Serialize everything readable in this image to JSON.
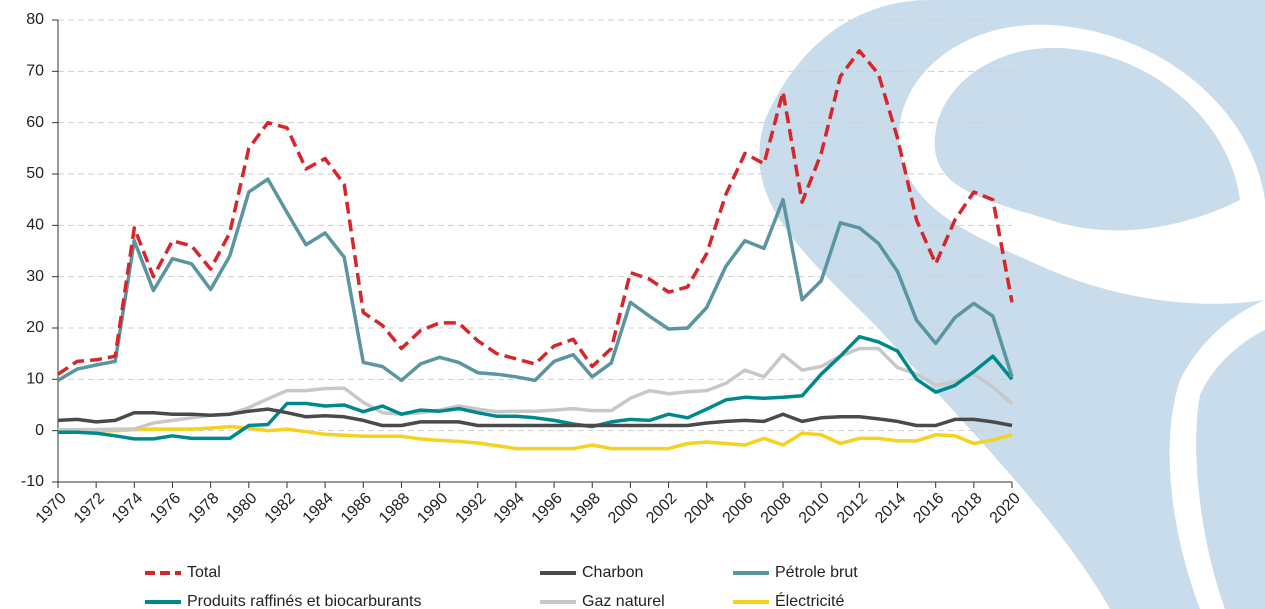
{
  "chart_data": {
    "type": "line",
    "x": [
      1970,
      1971,
      1972,
      1973,
      1974,
      1975,
      1976,
      1977,
      1978,
      1979,
      1980,
      1981,
      1982,
      1983,
      1984,
      1985,
      1986,
      1987,
      1988,
      1989,
      1990,
      1991,
      1992,
      1993,
      1994,
      1995,
      1996,
      1997,
      1998,
      1999,
      2000,
      2001,
      2002,
      2003,
      2004,
      2005,
      2006,
      2007,
      2008,
      2009,
      2010,
      2011,
      2012,
      2013,
      2014,
      2015,
      2016,
      2017,
      2018,
      2019,
      2020
    ],
    "xlim": [
      1970,
      2020
    ],
    "xticks": [
      1970,
      1972,
      1974,
      1976,
      1978,
      1980,
      1982,
      1984,
      1986,
      1988,
      1990,
      1992,
      1994,
      1996,
      1998,
      2000,
      2002,
      2004,
      2006,
      2008,
      2010,
      2012,
      2014,
      2016,
      2018,
      2020
    ],
    "ylim": [
      -10,
      80
    ],
    "yticks": [
      -10,
      0,
      10,
      20,
      30,
      40,
      50,
      60,
      70,
      80
    ],
    "grid": true,
    "series": [
      {
        "name": "Total",
        "color": "#d7262b",
        "style": "dashed",
        "values": [
          11,
          13.5,
          13.8,
          14.5,
          39.5,
          30,
          37,
          36,
          31.5,
          38.5,
          55,
          60,
          59,
          51,
          53,
          48,
          23,
          20.5,
          16,
          19.5,
          21,
          21,
          17.5,
          15,
          14,
          13,
          16.5,
          17.8,
          12.5,
          16,
          30.8,
          29.5,
          27,
          28,
          34.5,
          46,
          54,
          52,
          66,
          44.5,
          54,
          69,
          74,
          69.5,
          57,
          41,
          32.5,
          41,
          46.5,
          45,
          25
        ]
      },
      {
        "name": "Charbon",
        "color": "#4a4a4a",
        "style": "solid",
        "values": [
          2,
          2.2,
          1.7,
          2,
          3.5,
          3.5,
          3.2,
          3.2,
          3,
          3.2,
          3.8,
          4.2,
          3.5,
          2.7,
          2.9,
          2.7,
          2,
          1,
          1,
          1.7,
          1.7,
          1.7,
          1,
          1,
          1,
          1,
          1,
          1,
          1,
          1,
          1,
          1,
          1,
          1,
          1.5,
          1.8,
          2,
          1.8,
          3.2,
          1.8,
          2.5,
          2.7,
          2.7,
          2.3,
          1.8,
          1,
          1,
          2.2,
          2.2,
          1.7,
          1
        ]
      },
      {
        "name": "Pétrole brut",
        "color": "#5a95a1",
        "style": "solid",
        "values": [
          9.8,
          12,
          12.8,
          13.5,
          37,
          27.3,
          33.5,
          32.5,
          27.5,
          34,
          46.5,
          49,
          42.5,
          36.2,
          38.5,
          33.8,
          13.3,
          12.5,
          9.8,
          13,
          14.3,
          13.3,
          11.3,
          11,
          10.5,
          9.8,
          13.5,
          14.8,
          10.5,
          13.2,
          25,
          22.3,
          19.8,
          20,
          24,
          32,
          37,
          35.5,
          45,
          25.5,
          29.2,
          40.5,
          39.5,
          36.5,
          31,
          21.5,
          17,
          22,
          24.8,
          22.3,
          10.5
        ]
      },
      {
        "name": "Produits raffinés et biocarburants",
        "color": "#00898b",
        "style": "solid",
        "values": [
          -0.3,
          -0.3,
          -0.5,
          -1,
          -1.6,
          -1.6,
          -1,
          -1.5,
          -1.5,
          -1.5,
          1,
          1.2,
          5.3,
          5.3,
          4.8,
          5,
          3.7,
          4.8,
          3.2,
          4,
          3.8,
          4.3,
          3.5,
          2.8,
          2.8,
          2.5,
          2,
          1.3,
          0.8,
          1.7,
          2.2,
          2,
          3.2,
          2.5,
          4.2,
          6,
          6.5,
          6.3,
          6.5,
          6.8,
          11,
          14.5,
          18.3,
          17.3,
          15.5,
          10,
          7.5,
          8.8,
          11.5,
          14.5,
          10
        ]
      },
      {
        "name": "Gaz naturel",
        "color": "#c8c8c8",
        "style": "solid",
        "values": [
          0.2,
          0.2,
          0.2,
          0.3,
          0.3,
          1.5,
          2,
          2.5,
          3,
          3.2,
          4.5,
          6.2,
          7.8,
          7.8,
          8.2,
          8.3,
          5.5,
          3.5,
          3.2,
          3.5,
          4,
          4.8,
          4.2,
          3.7,
          3.8,
          3.8,
          4,
          4.3,
          3.9,
          3.9,
          6.3,
          7.8,
          7.2,
          7.6,
          7.8,
          9.2,
          11.8,
          10.5,
          14.8,
          11.8,
          12.5,
          14.5,
          16,
          16,
          12.3,
          11,
          8.8,
          9.5,
          11,
          8.5,
          5.3
        ]
      },
      {
        "name": "Électricité",
        "color": "#f4d21e",
        "style": "solid",
        "values": [
          0,
          0,
          0,
          0,
          0.2,
          0.3,
          0.3,
          0.3,
          0.5,
          0.8,
          0.5,
          0,
          0.3,
          -0.2,
          -0.7,
          -0.9,
          -1.1,
          -1.1,
          -1.1,
          -1.6,
          -1.9,
          -2.1,
          -2.4,
          -2.9,
          -3.5,
          -3.5,
          -3.5,
          -3.5,
          -2.8,
          -3.5,
          -3.5,
          -3.5,
          -3.5,
          -2.5,
          -2.2,
          -2.5,
          -2.8,
          -1.5,
          -2.8,
          -0.5,
          -0.8,
          -2.5,
          -1.5,
          -1.5,
          -2,
          -2,
          -0.8,
          -1,
          -2.5,
          -1.8,
          -0.8
        ]
      }
    ]
  }
}
